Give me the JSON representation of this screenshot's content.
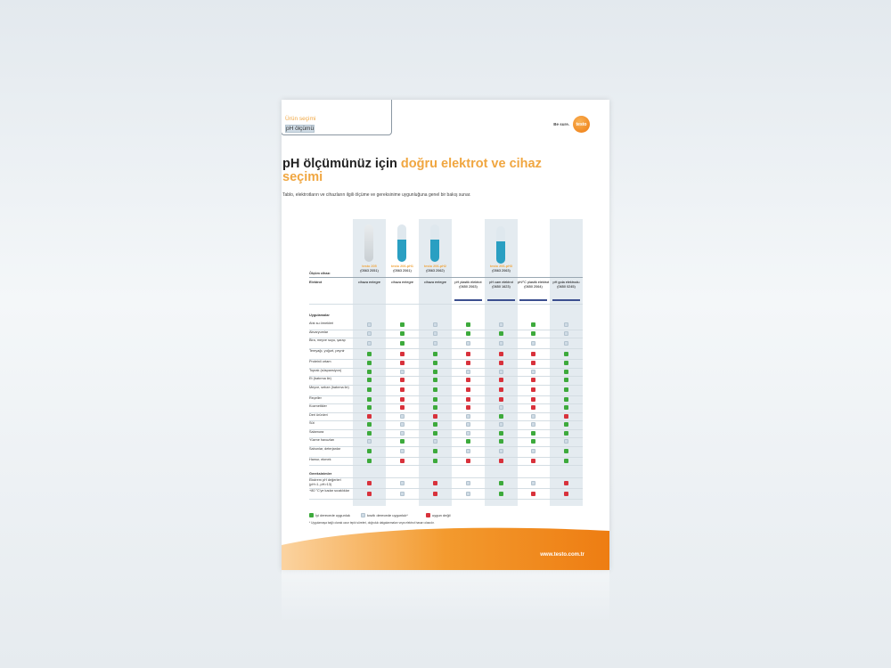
{
  "header": {
    "tab_line1": "Ürün seçimi",
    "tab_line2": "pH ölçümü",
    "tagline": "Be sure.",
    "logo": "testo"
  },
  "title": {
    "part1": "pH ölçümünüz için ",
    "part2": "doğru elektrot ve cihaz seçimi"
  },
  "lead": "Tablo, elektrotların ve cihazların ilgili ölçüme ve gereksinime uygunluğuna genel bir bakış sunar.",
  "table": {
    "row_label_device": "Ölçüm cihazı",
    "row_label_electrode": "Elektrot",
    "devices": [
      {
        "name": "testo 205",
        "code": "(0563 2051)"
      },
      {
        "name": "testo 206-pH1",
        "code": "(0563 2061)"
      },
      {
        "name": "testo 206-pH2",
        "code": "(0563 2062)"
      },
      {
        "name": "testo 206-pH3",
        "code": "(0563 2063)"
      }
    ],
    "electrodes": [
      "cihaza entegre",
      "cihaza entegre",
      "cihaza entegre",
      "pH plastik elektrot (0650 2063)",
      "pH cam elektrot (0650 1623)",
      "pH/°C plastik elektrot (0650 2064)",
      "pH gıda elektrodu (0650 0245)"
    ],
    "section_applications": "Uygulamalar",
    "applications": [
      {
        "label": "Atık su örnekleri",
        "v": "bgbgbgb"
      },
      {
        "label": "Akvaryumlar",
        "v": "bgbgggb"
      },
      {
        "label": "Bira, meyve suyu, şarap",
        "v": "bgbbbbb"
      },
      {
        "label": "Tereyağı, yoğurt, peynir",
        "v": "grgrrrg"
      },
      {
        "label": "Proteinli ortam",
        "v": "grgrrrg"
      },
      {
        "label": "Toprak (süspansiyon)",
        "v": "gbgbbbg"
      },
      {
        "label": "Et (batırma ile)",
        "v": "grgrrrg"
      },
      {
        "label": "Meyve, sebze (batırma ile)",
        "v": "grgrrrg"
      },
      {
        "label": "Reçeller",
        "v": "grgrrrg"
      },
      {
        "label": "Kozmetikler",
        "v": "grgrbrg"
      },
      {
        "label": "Deri ürünleri",
        "v": "rbrbgbr"
      },
      {
        "label": "Süt",
        "v": "gbgbbbg"
      },
      {
        "label": "Salamura",
        "v": "gbgbggg"
      },
      {
        "label": "Yüzme havuzları",
        "v": "bgbgggb"
      },
      {
        "label": "Sabunlar, deterjanlar",
        "v": "gbgbbbg"
      },
      {
        "label": "Hamur, ekmek",
        "v": "grgrrrg"
      }
    ],
    "section_requirements": "Gereksinimler",
    "requirements": [
      {
        "label": "Ekstrem pH değerleri (pH<1, pH>13)",
        "v": "rbrbgbr"
      },
      {
        "label": "+80 °C'ye kadar sıcaklıklar",
        "v": "rbrbgrr"
      }
    ]
  },
  "legend": {
    "good": "İyi derecede uygunluk",
    "limited": "kısıtlı derecede uygunluk*",
    "not": "uygun değil"
  },
  "footnote": "* Uygulamaya bağlı olarak uzun tepki süreleri, doğruluk dalgalanmaları veya elektrot hasarı olasıdır.",
  "footer": {
    "url": "www.testo.com.tr"
  },
  "colors": {
    "accent": "#f0a640",
    "good": "#3daa3c",
    "not": "#d8323c",
    "limited": "#cfdbe5"
  }
}
